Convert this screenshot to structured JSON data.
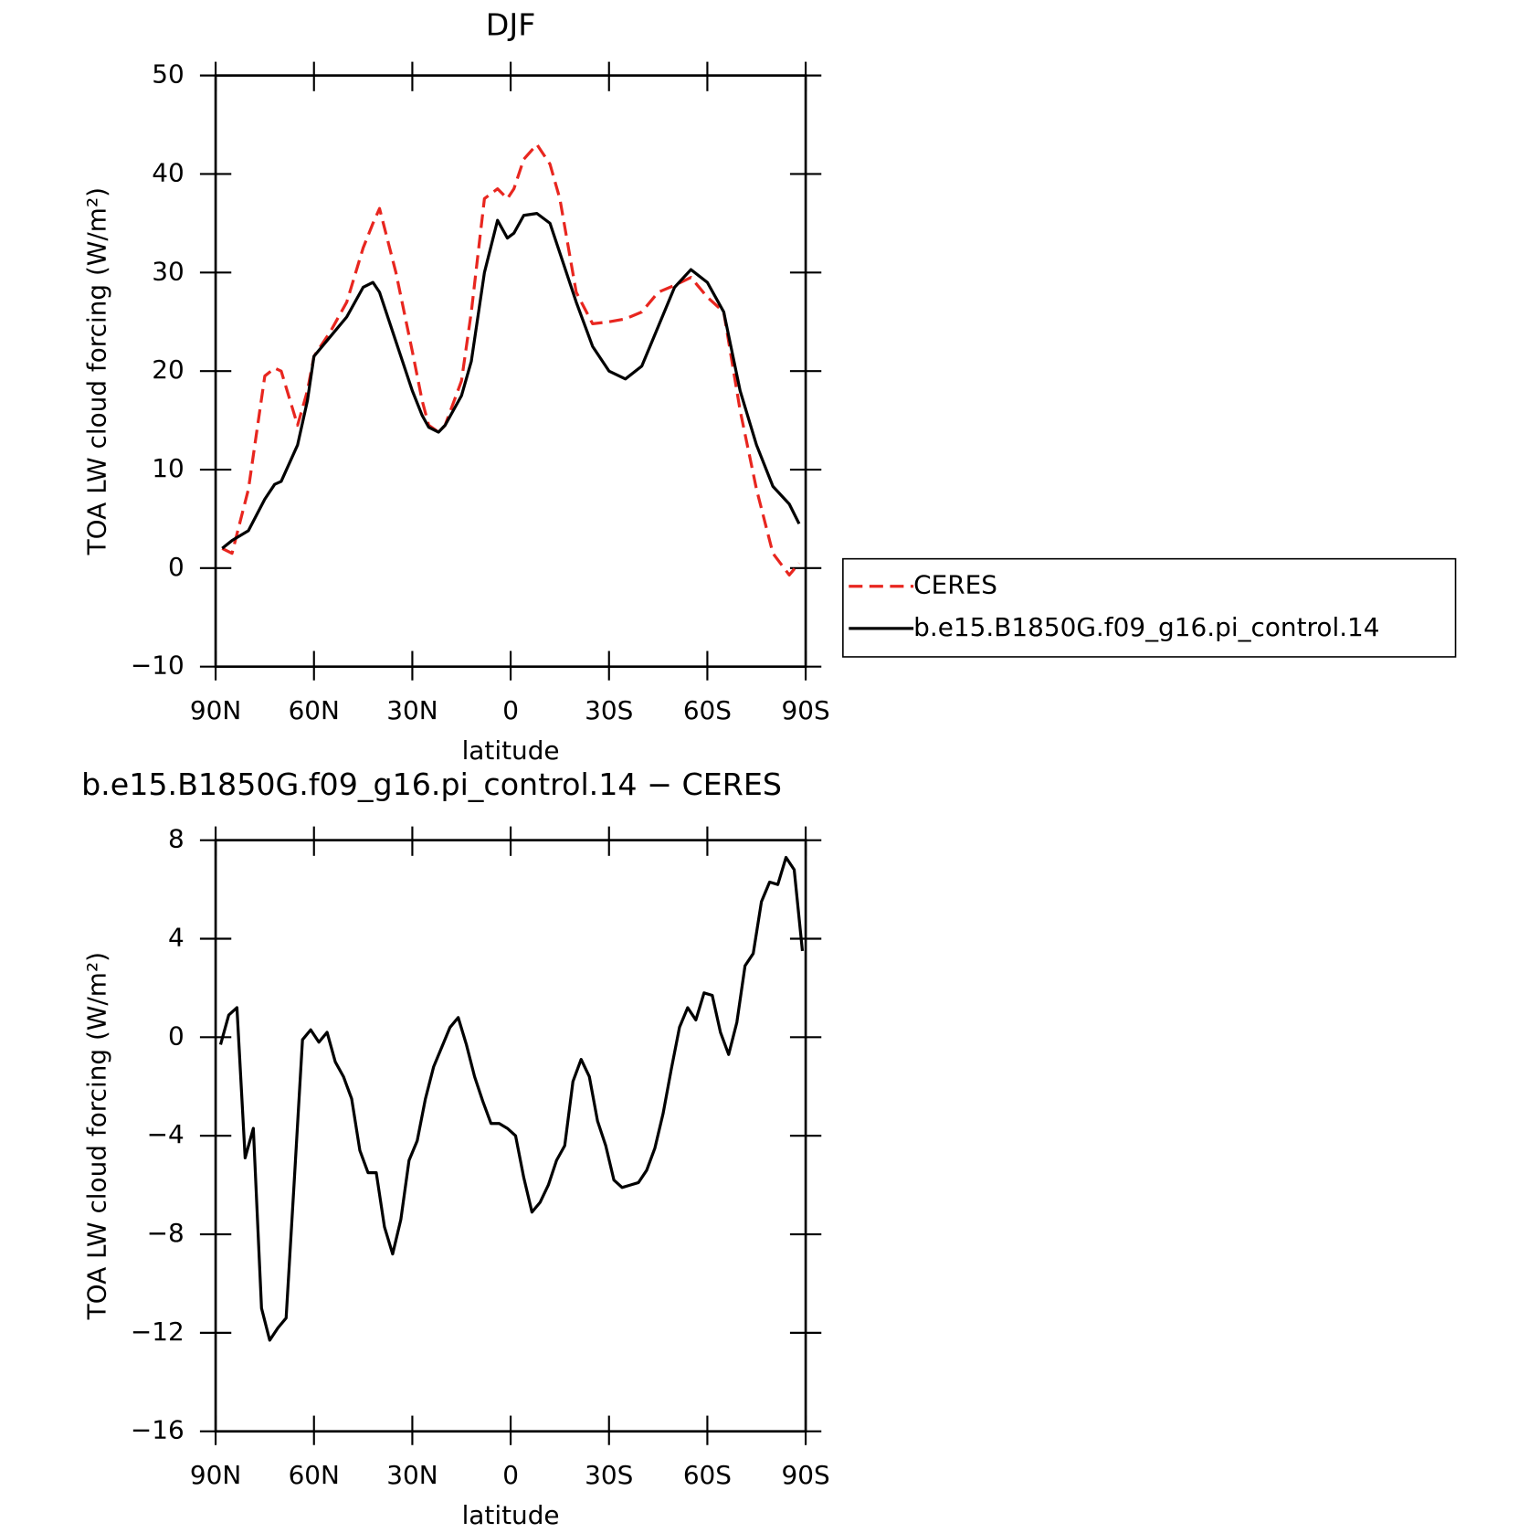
{
  "chart_data": [
    {
      "type": "line",
      "title": "DJF",
      "xlabel": "latitude",
      "ylabel": "TOA LW cloud forcing (W/m²)",
      "x": [
        88,
        85,
        80,
        75,
        72,
        70,
        65,
        62,
        60,
        55,
        50,
        45,
        42,
        40,
        35,
        30,
        27,
        25,
        22,
        20,
        15,
        12,
        8,
        4,
        1,
        -1,
        -4,
        -8,
        -12,
        -15,
        -20,
        -25,
        -30,
        -35,
        -40,
        -45,
        -50,
        -55,
        -60,
        -65,
        -70,
        -75,
        -80,
        -85,
        -88
      ],
      "series": [
        {
          "name": "CERES",
          "color": "#e8261f",
          "line_style": "dashed",
          "values": [
            2,
            1.5,
            8,
            19.5,
            20.3,
            20,
            14.5,
            18,
            21.5,
            24,
            27,
            32.5,
            35,
            36.5,
            30,
            22,
            17,
            14.5,
            13.8,
            14.5,
            19,
            26,
            37.5,
            38.5,
            37.5,
            38.5,
            41.5,
            43,
            41,
            37.5,
            28,
            24.8,
            25,
            25.3,
            26,
            28,
            28.7,
            29.5,
            27.5,
            26,
            16,
            8,
            1.5,
            -0.7,
            0.5
          ]
        },
        {
          "name": "b.e15.B1850G.f09_g16.pi_control.14",
          "color": "#000000",
          "line_style": "solid",
          "values": [
            2,
            2.8,
            3.8,
            7,
            8.5,
            8.8,
            12.5,
            17,
            21.5,
            23.5,
            25.5,
            28.5,
            29,
            28,
            23,
            18,
            15.5,
            14.3,
            13.8,
            14.5,
            17.5,
            21,
            30,
            35.3,
            33.5,
            34,
            35.8,
            36,
            35,
            32,
            27,
            22.5,
            20,
            19.2,
            20.5,
            24.5,
            28.5,
            30.3,
            29,
            26,
            18,
            12.5,
            8.3,
            6.5,
            4.5
          ]
        }
      ],
      "xlim": [
        90,
        -90
      ],
      "xticks": [
        {
          "value": 90,
          "label": "90N"
        },
        {
          "value": 60,
          "label": "60N"
        },
        {
          "value": 30,
          "label": "30N"
        },
        0,
        {
          "value": -30,
          "label": "30S"
        },
        {
          "value": -60,
          "label": "60S"
        },
        {
          "value": -90,
          "label": "90S"
        }
      ],
      "ylim": [
        -10,
        50
      ],
      "yticks": [
        {
          "value": -10,
          "label": "−10"
        },
        0,
        10,
        20,
        30,
        40,
        50
      ],
      "legend": "right"
    },
    {
      "type": "line",
      "title": "b.e15.B1850G.f09_g16.pi_control.14 − CERES",
      "xlabel": "latitude",
      "ylabel": "TOA LW cloud forcing (W/m²)",
      "x": [
        88.5,
        86,
        83.5,
        81,
        78.5,
        76,
        73.5,
        71,
        68.5,
        66,
        63.5,
        61,
        58.5,
        56,
        53.5,
        51,
        48.5,
        46,
        43.5,
        41,
        38.5,
        36,
        33.5,
        31,
        28.5,
        26,
        23.5,
        21,
        18.5,
        16,
        13.5,
        11,
        8.5,
        6,
        3.5,
        1,
        -1.5,
        -4,
        -6.5,
        -9,
        -11.5,
        -14,
        -16.5,
        -19,
        -21.5,
        -24,
        -26.5,
        -29,
        -31.5,
        -34,
        -36.5,
        -39,
        -41.5,
        -44,
        -46.5,
        -49,
        -51.5,
        -54,
        -56.5,
        -59,
        -61.5,
        -64,
        -66.5,
        -69,
        -71.5,
        -74,
        -76.5,
        -79,
        -81.5,
        -84,
        -86.5,
        -89
      ],
      "series": [
        {
          "color": "#000000",
          "line_style": "solid",
          "values": [
            -0.3,
            0.9,
            1.2,
            -4.9,
            -3.7,
            -11,
            -12.3,
            -11.8,
            -11.4,
            -5.8,
            -0.1,
            0.3,
            -0.2,
            0.2,
            -1,
            -1.6,
            -2.5,
            -4.6,
            -5.5,
            -5.5,
            -7.7,
            -8.8,
            -7.4,
            -5,
            -4.2,
            -2.5,
            -1.2,
            -0.4,
            0.4,
            0.8,
            -0.3,
            -1.6,
            -2.6,
            -3.5,
            -3.5,
            -3.7,
            -4,
            -5.7,
            -7.1,
            -6.7,
            -6,
            -5,
            -4.4,
            -1.8,
            -0.9,
            -1.6,
            -3.4,
            -4.4,
            -5.8,
            -6.1,
            -6,
            -5.9,
            -5.4,
            -4.5,
            -3.1,
            -1.3,
            0.4,
            1.2,
            0.7,
            1.8,
            1.7,
            0.2,
            -0.7,
            0.6,
            2.9,
            3.4,
            5.5,
            6.3,
            6.2,
            7.3,
            6.8,
            3.5
          ]
        }
      ],
      "xlim": [
        90,
        -90
      ],
      "xticks": [
        {
          "value": 90,
          "label": "90N"
        },
        {
          "value": 60,
          "label": "60N"
        },
        {
          "value": 30,
          "label": "30N"
        },
        0,
        {
          "value": -30,
          "label": "30S"
        },
        {
          "value": -60,
          "label": "60S"
        },
        {
          "value": -90,
          "label": "90S"
        }
      ],
      "ylim": [
        -16,
        8
      ],
      "yticks": [
        {
          "value": -16,
          "label": "−16"
        },
        {
          "value": -12,
          "label": "−12"
        },
        {
          "value": -8,
          "label": "−8"
        },
        {
          "value": -4,
          "label": "−4"
        },
        0,
        4,
        8
      ]
    }
  ]
}
